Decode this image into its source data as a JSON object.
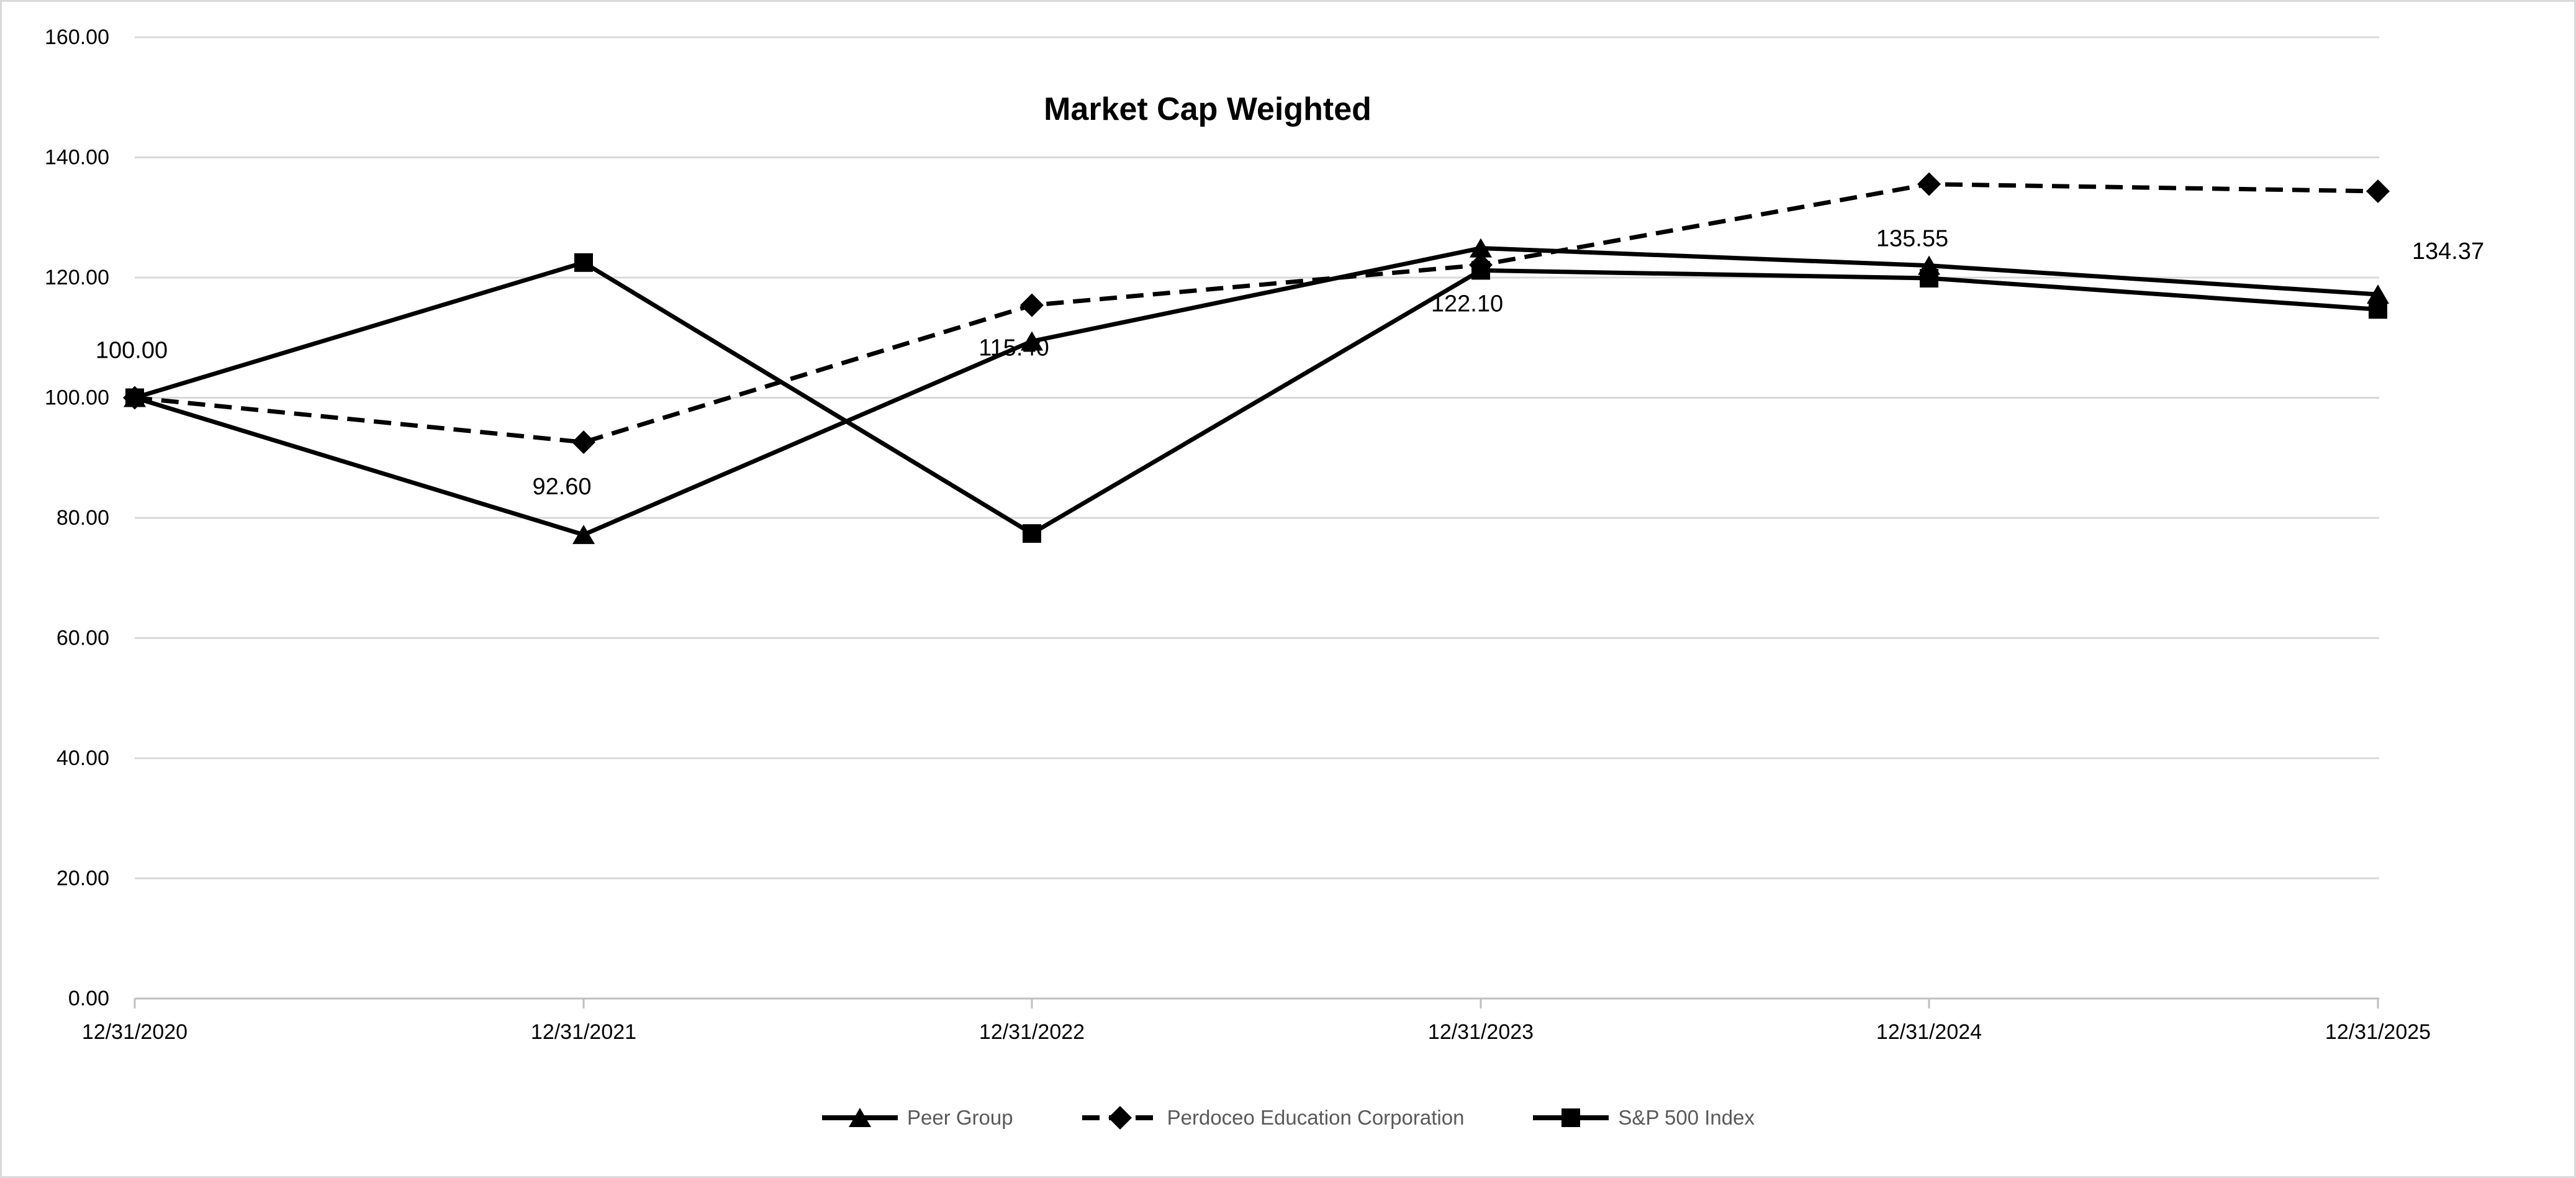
{
  "title": "Market Cap Weighted",
  "chart_data": {
    "type": "line",
    "title": "Market Cap Weighted",
    "x_labels": [
      "12/31/2020",
      "12/31/2021",
      "12/31/2022",
      "12/31/2023",
      "12/31/2024",
      "12/31/2025"
    ],
    "y_ticks": [
      0,
      20,
      40,
      60,
      80,
      100,
      120,
      140,
      160
    ],
    "y_tick_format": "0.00",
    "ylim": [
      0,
      160
    ],
    "grid": "horizontal",
    "legend_position": "bottom",
    "series": [
      {
        "name": "Peer Group",
        "marker": "triangle",
        "line": "solid",
        "color": "#000000",
        "values": [
          100.0,
          77.2,
          109.4,
          124.9,
          122.0,
          117.2
        ]
      },
      {
        "name": "Perdoceo Education Corporation",
        "marker": "diamond",
        "line": "dashed",
        "color": "#000000",
        "values": [
          100.0,
          92.6,
          115.4,
          122.1,
          135.55,
          134.37
        ],
        "point_labels": [
          "100.00",
          "92.60",
          "115.40",
          "122.10",
          "135.55",
          "134.37"
        ]
      },
      {
        "name": "S&P 500 Index",
        "marker": "square",
        "line": "solid",
        "color": "#000000",
        "values": [
          100.0,
          122.5,
          77.4,
          121.2,
          119.9,
          114.7
        ]
      }
    ],
    "colors": {
      "series_line": "#000000",
      "gridline": "#d9d9d9",
      "axis_line": "#bfbfbf",
      "axis_text": "#000000",
      "data_label_text": "#000000",
      "legend_text": "#595959",
      "background": "#ffffff"
    }
  }
}
